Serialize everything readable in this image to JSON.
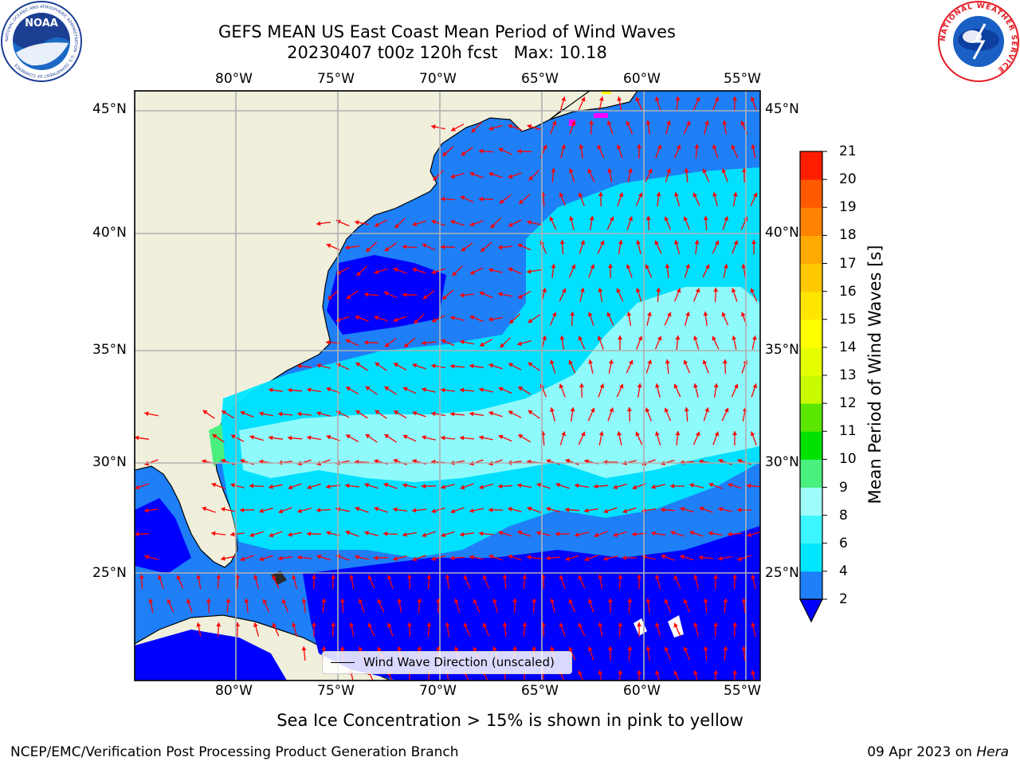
{
  "header": {
    "title_line1": "GEFS MEAN US East Coast Mean Period of Wind Waves",
    "title_line2": "20230407 t00z 120h fcst   Max: 10.18"
  },
  "logos": {
    "noaa_text": "NOAA",
    "noaa_ring_text": "NATIONAL OCEANIC AND ATMOSPHERIC ADMINISTRATION · U.S. DEPARTMENT OF COMMERCE",
    "nws_ring_text": "NATIONAL WEATHER SERVICE"
  },
  "map": {
    "lon_labels": [
      "80°W",
      "75°W",
      "70°W",
      "65°W",
      "60°W",
      "55°W"
    ],
    "lat_labels": [
      "45°N",
      "40°N",
      "35°N",
      "30°N",
      "25°N"
    ],
    "land_color": "#efefdc",
    "grid_color": "#b0b0b0",
    "arrow_color": "#ff0000",
    "legend_label": "Wind Wave Direction (unscaled)"
  },
  "colorbar": {
    "label": "Mean Period of Wind Waves [s]",
    "ticks": [
      "2",
      "4",
      "6",
      "8",
      "9",
      "10",
      "11",
      "12",
      "13",
      "14",
      "15",
      "16",
      "17",
      "18",
      "19",
      "20",
      "21"
    ],
    "colors": [
      "#1e7ff7",
      "#00e6ff",
      "#3cf6ff",
      "#9efdfb",
      "#4af07e",
      "#00e300",
      "#5ae600",
      "#c8fa00",
      "#e6ff00",
      "#ffff00",
      "#ffe600",
      "#ffc800",
      "#ffaa00",
      "#ff8200",
      "#ff5a00",
      "#ff1e00"
    ],
    "under_color": "#0000ff"
  },
  "ice_note": "Sea Ice Concentration > 15% is shown in pink to yellow",
  "footer": {
    "left": "NCEP/EMC/Verification Post Processing Product Generation Branch",
    "date": "09 Apr 2023 on ",
    "machine": "Hera"
  }
}
